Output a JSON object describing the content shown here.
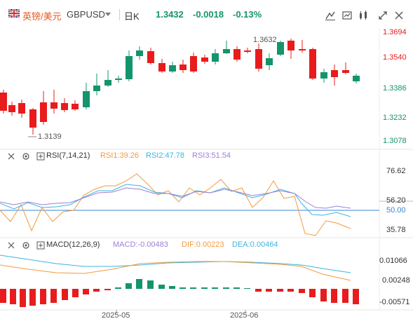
{
  "header": {
    "symbol_cn": "英镑/美元",
    "symbol_en": "GBPUSD",
    "timeframe": "日K",
    "last_price": "1.3432",
    "change": "-0.0018",
    "change_pct": "-0.13%",
    "tools": [
      "draw-icon",
      "compare-icon",
      "indicator-icon",
      "fullscreen-icon",
      "close-icon"
    ]
  },
  "main_chart": {
    "price_axis": [
      "1.3694",
      "1.3540",
      "1.3386",
      "1.3232",
      "1.3078"
    ],
    "high_label": "1.3632",
    "low_label": "1.3139",
    "colors": {
      "up": "#14946c",
      "down": "#e81c1c",
      "axis_text_down": "#e81c1c",
      "axis_text_up": "#14946c"
    }
  },
  "rsi": {
    "name": "RSI(7,14,21)",
    "rsi1": "RSI1:39.26",
    "rsi2": "RSI2:47.78",
    "rsi3": "RSI3:51.54",
    "axis": [
      "76.62",
      "56.20",
      "50.00",
      "35.78"
    ],
    "colors": {
      "rsi1": "#f59a3c",
      "rsi2": "#3cb5e0",
      "rsi3": "#9c7fd9"
    }
  },
  "macd": {
    "name": "MACD(12,26,9)",
    "macd": "MACD:-0.00483",
    "dif": "DIF:0.00223",
    "dea": "DEA:0.00464",
    "axis": [
      "0.01066",
      "0.00248",
      "-0.00571"
    ],
    "colors": {
      "macd": "#9c7fd9",
      "dif": "#f59a3c",
      "dea": "#3cb5e0"
    }
  },
  "time_axis": [
    "2025-05",
    "2025-06"
  ]
}
